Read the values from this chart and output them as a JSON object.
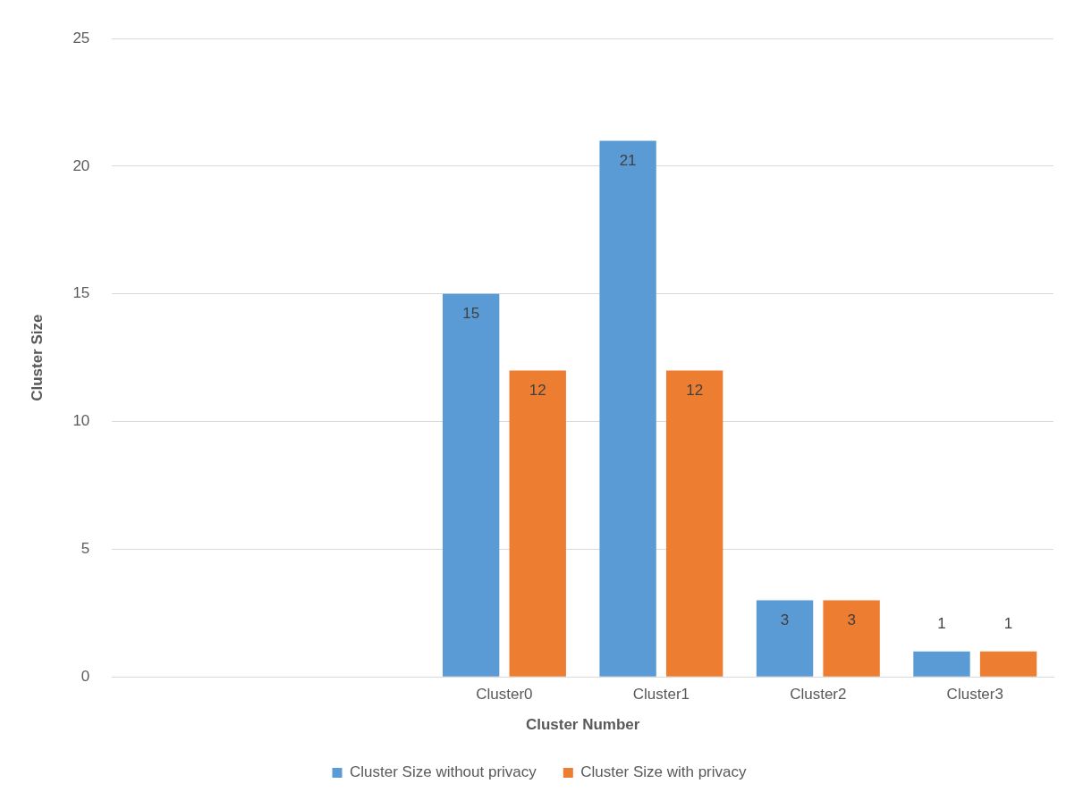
{
  "chart_data": {
    "type": "bar",
    "xlabel": "Cluster Number",
    "ylabel": "Cluster Size",
    "categories": [
      null,
      null,
      "Cluster0",
      "Cluster1",
      "Cluster2",
      "Cluster3"
    ],
    "series": [
      {
        "name": "Cluster Size without privacy",
        "color": "#5b9bd5",
        "values": [
          null,
          null,
          15,
          21,
          3,
          1
        ]
      },
      {
        "name": "Cluster Size with privacy",
        "color": "#ed7d31",
        "values": [
          null,
          null,
          12,
          12,
          3,
          1
        ]
      }
    ],
    "ylim": [
      0,
      25
    ],
    "yticks": [
      0,
      5,
      10,
      15,
      20,
      25
    ],
    "grid": "y",
    "legend": "bottom",
    "data_labels": true
  }
}
